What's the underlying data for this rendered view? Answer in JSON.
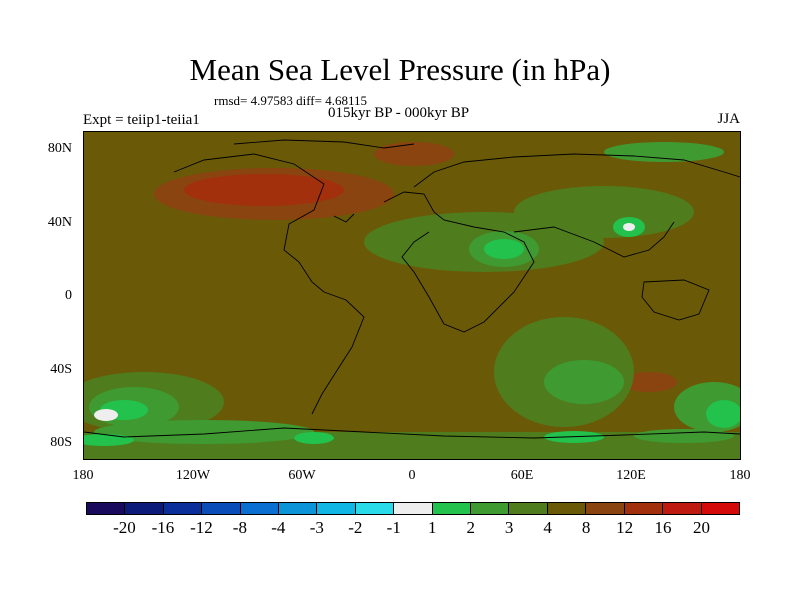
{
  "title": "Mean Sea Level Pressure (in hPa)",
  "stats": "rmsd= 4.97583 diff= 4.68115",
  "experiment": "Expt = teiip1-teiia1",
  "period": "015kyr BP - 000kyr BP",
  "season": "JJA",
  "lat_labels": [
    "80N",
    "40N",
    "0",
    "40S",
    "80S"
  ],
  "lon_labels": [
    "180",
    "120W",
    "60W",
    "0",
    "60E",
    "120E",
    "180"
  ],
  "colorbar": {
    "labels": [
      "-20",
      "-16",
      "-12",
      "-8",
      "-4",
      "-3",
      "-2",
      "-1",
      "1",
      "2",
      "3",
      "4",
      "8",
      "12",
      "16",
      "20"
    ],
    "colors": [
      "#1a0a5e",
      "#0c1a7a",
      "#0a2e9a",
      "#0a4cb8",
      "#0a6fd0",
      "#0b95d8",
      "#11b6e4",
      "#29dbe8",
      "#eeeeee",
      "#22c24c",
      "#3f9a32",
      "#4f7c1c",
      "#6a5a08",
      "#8a4410",
      "#a2300c",
      "#be1a10",
      "#d40a0a"
    ]
  },
  "colors": {
    "background_field": "#6a5a08",
    "coastline": "#000000"
  }
}
